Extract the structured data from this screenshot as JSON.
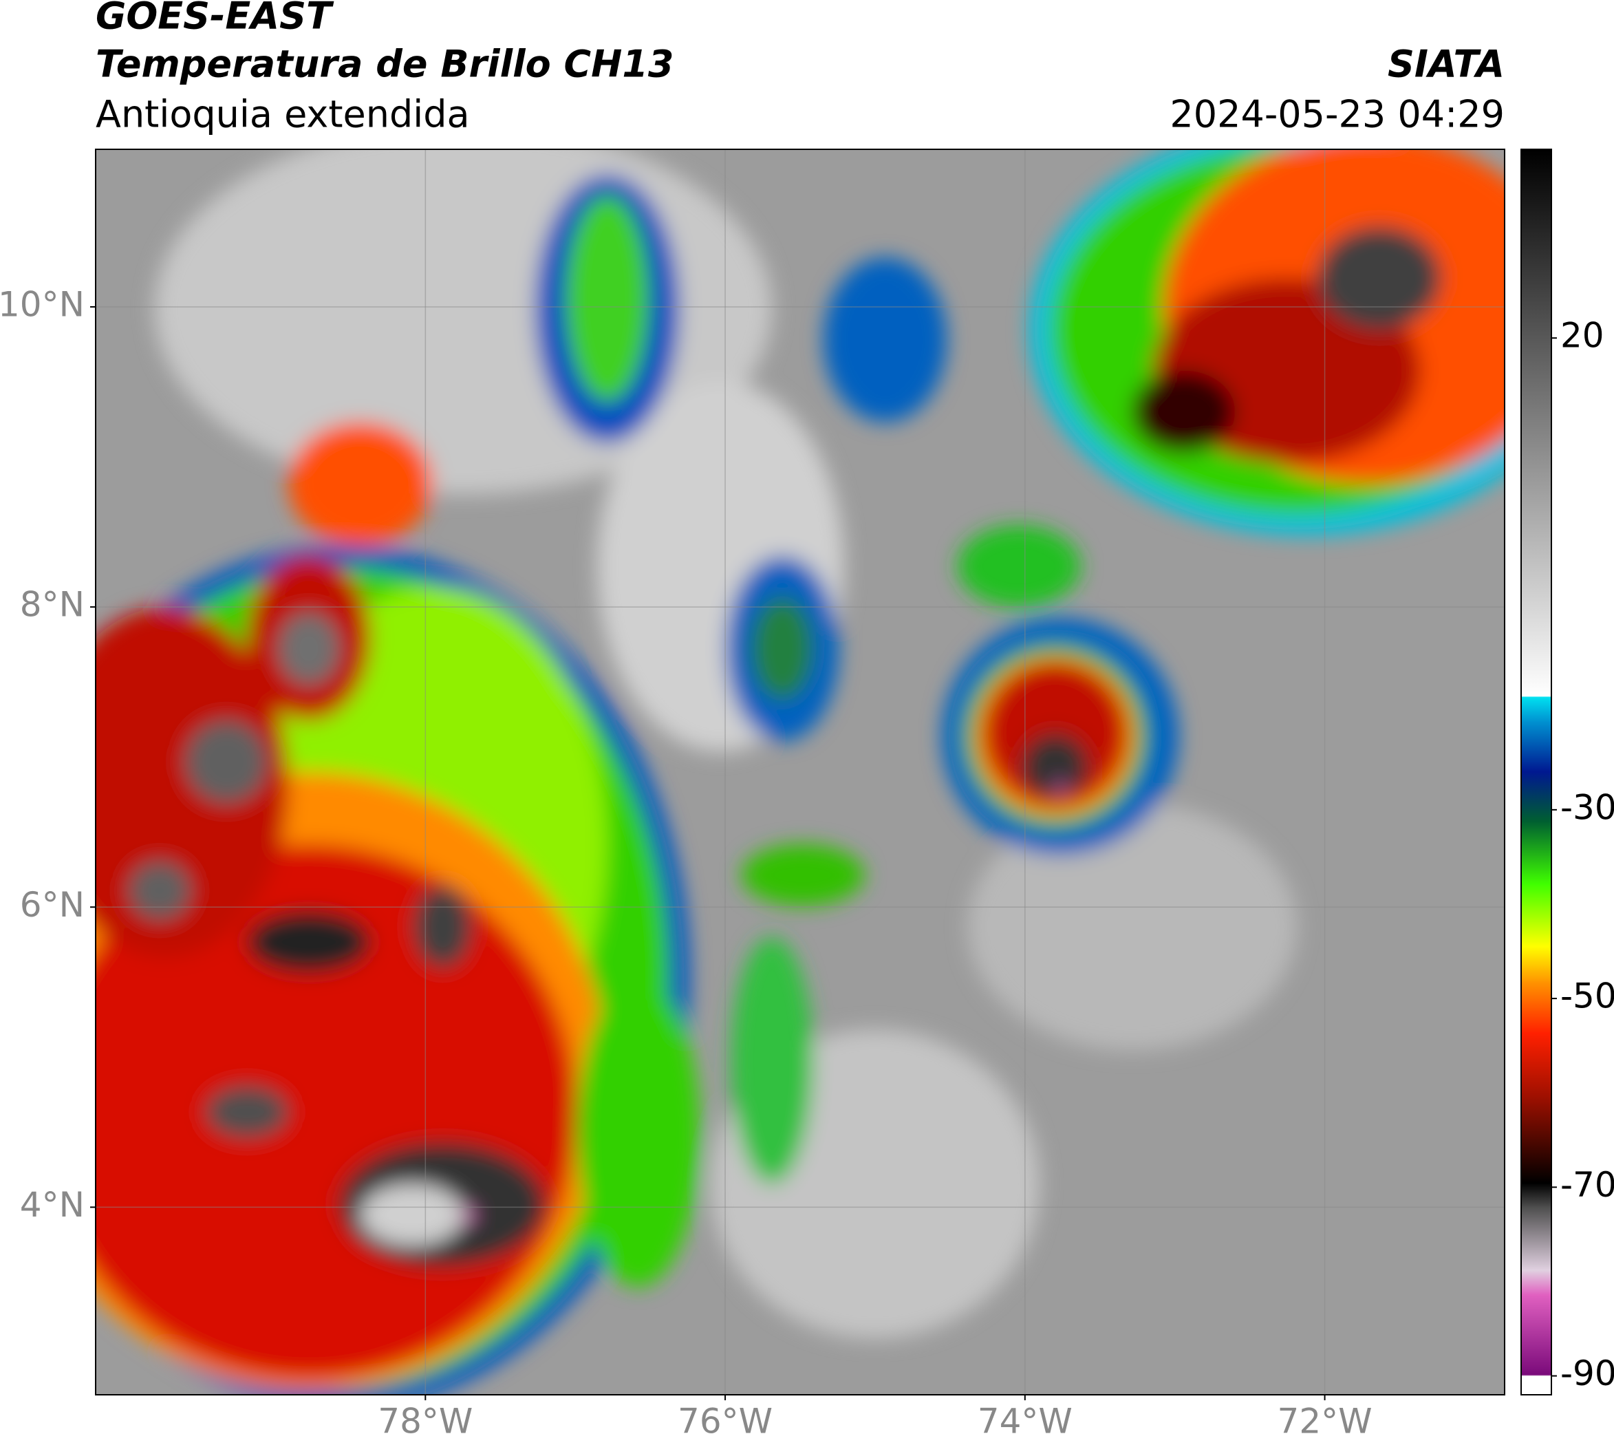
{
  "header": {
    "title": "GOES-EAST",
    "subtitle": "Temperatura de Brillo CH13",
    "region": "Antioquia extendida",
    "source": "SIATA",
    "datetime": "2024-05-23 04:29"
  },
  "map": {
    "type": "map",
    "xlim": [
      -80.2,
      -70.8
    ],
    "ylim": [
      2.75,
      11.05
    ],
    "xticks": [
      {
        "value": -78,
        "label": "78°W"
      },
      {
        "value": -76,
        "label": "76°W"
      },
      {
        "value": -74,
        "label": "74°W"
      },
      {
        "value": -72,
        "label": "72°W"
      }
    ],
    "yticks": [
      {
        "value": 4,
        "label": "4°N"
      },
      {
        "value": 6,
        "label": "6°N"
      },
      {
        "value": 8,
        "label": "8°N"
      },
      {
        "value": 10,
        "label": "10°N"
      }
    ],
    "grid": true
  },
  "colorbar": {
    "lim": [
      -92,
      40
    ],
    "ticks": [
      -90,
      -70,
      -50,
      -30,
      20
    ]
  }
}
